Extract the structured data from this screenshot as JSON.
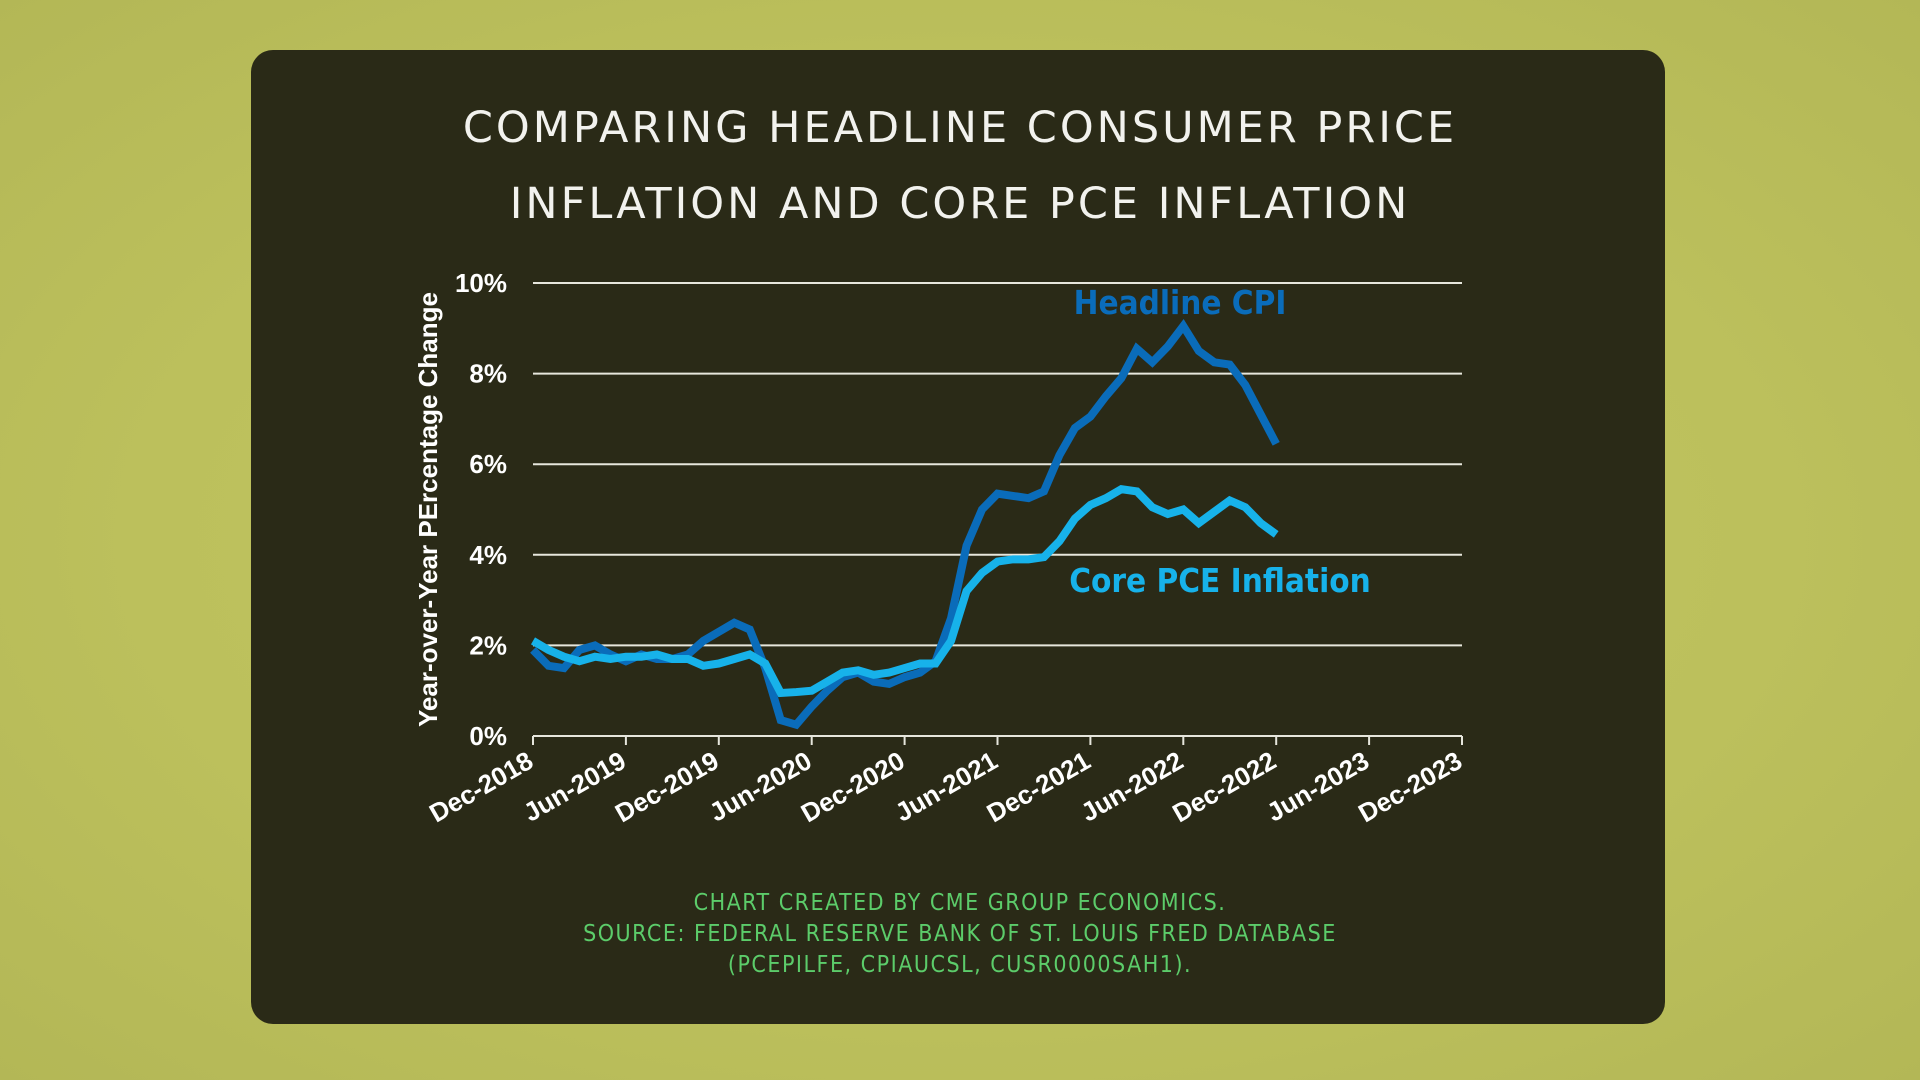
{
  "colors": {
    "background": "#bfc35f",
    "card": "#2a2a17",
    "headline_cpi": "#0a6cba",
    "core_pce": "#17b2ea",
    "footer": "#5ccc6a"
  },
  "chart_data": {
    "type": "line",
    "title": [
      "COMPARING HEADLINE CONSUMER PRICE",
      "INFLATION AND CORE PCE INFLATION"
    ],
    "xlabel": "",
    "ylabel": "Year-over-Year PErcentage Change",
    "ylim": [
      0,
      10
    ],
    "y_ticks": [
      "0%",
      "2%",
      "4%",
      "6%",
      "8%",
      "10%"
    ],
    "x_ticks": [
      "Dec-2018",
      "Jun-2019",
      "Dec-2019",
      "Jun-2020",
      "Dec-2020",
      "Jun-2021",
      "Dec-2021",
      "Jun-2022",
      "Dec-2022",
      "Jun-2023",
      "Dec-2023"
    ],
    "x_range": [
      "Dec-2018",
      "Dec-2023"
    ],
    "x_frequency": "monthly",
    "x_start": "Dec-2018",
    "grid": "horizontal",
    "series": [
      {
        "name": "Headline CPI",
        "values": [
          1.9,
          1.55,
          1.5,
          1.9,
          2.0,
          1.8,
          1.65,
          1.8,
          1.7,
          1.7,
          1.8,
          2.1,
          2.3,
          2.5,
          2.35,
          1.5,
          0.35,
          0.25,
          0.65,
          1.0,
          1.3,
          1.4,
          1.2,
          1.15,
          1.3,
          1.4,
          1.65,
          2.6,
          4.2,
          5.0,
          5.35,
          5.3,
          5.25,
          5.4,
          6.2,
          6.8,
          7.05,
          7.5,
          7.9,
          8.55,
          8.25,
          8.6,
          9.05,
          8.5,
          8.25,
          8.2,
          7.75,
          7.1,
          6.45
        ]
      },
      {
        "name": "Core PCE Inflation",
        "values": [
          2.1,
          1.9,
          1.75,
          1.65,
          1.75,
          1.7,
          1.75,
          1.75,
          1.8,
          1.7,
          1.7,
          1.55,
          1.6,
          1.7,
          1.8,
          1.6,
          0.95,
          0.97,
          1.0,
          1.2,
          1.4,
          1.45,
          1.35,
          1.4,
          1.5,
          1.6,
          1.6,
          2.1,
          3.2,
          3.6,
          3.85,
          3.9,
          3.9,
          3.95,
          4.3,
          4.8,
          5.1,
          5.25,
          5.45,
          5.4,
          5.05,
          4.9,
          5.0,
          4.7,
          4.95,
          5.2,
          5.05,
          4.7,
          4.45
        ]
      }
    ]
  },
  "footer": {
    "line1": "CHART CREATED BY CME GROUP ECONOMICS.",
    "line2": "SOURCE: FEDERAL RESERVE BANK OF ST. LOUIS FRED DATABASE",
    "line3": "(PCEPILFE, CPIAUCSL, CUSR0000SAH1)."
  }
}
